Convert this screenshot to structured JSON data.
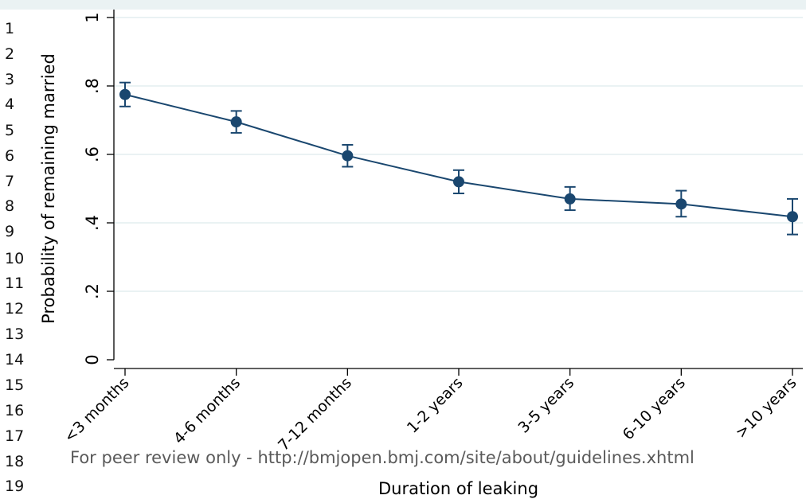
{
  "line_numbers": [
    "1",
    "2",
    "3",
    "4",
    "5",
    "6",
    "7",
    "8",
    "9",
    "10",
    "11",
    "12",
    "13",
    "14",
    "15",
    "16",
    "17",
    "18",
    "19"
  ],
  "watermark": "For peer review only - http://bmjopen.bmj.com/site/about/guidelines.xhtml",
  "colors": {
    "series": "#1a476f",
    "grid": "#eaf2f3",
    "plot_bg": "#ffffff",
    "header_bg": "#eaf2f3",
    "axis": "#000000"
  },
  "chart_data": {
    "type": "line",
    "title": "",
    "xlabel": "Duration of leaking",
    "ylabel": "Probability of remaining married",
    "ylim": [
      0,
      1
    ],
    "yticks": [
      0,
      0.2,
      0.4,
      0.6,
      0.8,
      1
    ],
    "ytick_labels": [
      "0",
      ".2",
      ".4",
      ".6",
      ".8",
      "1"
    ],
    "grid": true,
    "categories": [
      "<3 months",
      "4-6 months",
      "7-12 months",
      "1-2 years",
      "3-5 years",
      "6-10 years",
      ">10 years"
    ],
    "series": [
      {
        "values": [
          0.775,
          0.695,
          0.596,
          0.52,
          0.47,
          0.455,
          0.418
        ],
        "ci_low": [
          0.74,
          0.663,
          0.564,
          0.486,
          0.437,
          0.418,
          0.366
        ],
        "ci_high": [
          0.81,
          0.727,
          0.628,
          0.554,
          0.505,
          0.494,
          0.47
        ]
      }
    ]
  }
}
